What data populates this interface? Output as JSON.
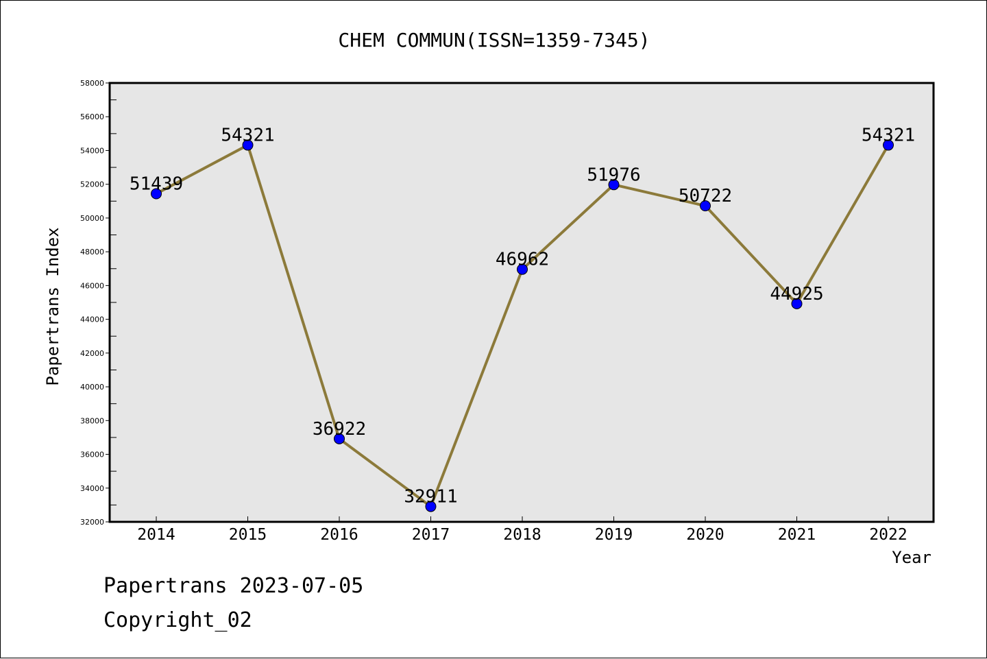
{
  "chart_data": {
    "type": "line",
    "title": "CHEM COMMUN(ISSN=1359-7345)",
    "xlabel": "Year",
    "ylabel": "Papertrans Index",
    "categories": [
      "2014",
      "2015",
      "2016",
      "2017",
      "2018",
      "2019",
      "2020",
      "2021",
      "2022"
    ],
    "series": [
      {
        "values": [
          51439,
          54321,
          36922,
          32911,
          46962,
          51976,
          50722,
          44925,
          54321
        ],
        "data_labels": [
          "51439",
          "54321",
          "36922",
          "32911",
          "46962",
          "51976",
          "50722",
          "44925",
          "54321"
        ]
      }
    ],
    "ylim": [
      32000,
      58000
    ],
    "y_ticks": [
      "32000",
      "34000",
      "36000",
      "38000",
      "40000",
      "42000",
      "44000",
      "46000",
      "48000",
      "50000",
      "52000",
      "54000",
      "56000",
      "58000"
    ],
    "grid": false,
    "legend": "none",
    "colors": {
      "line": "#8c7a3a",
      "marker": "#0000ff",
      "plot_background": "#e6e6e6",
      "axes": "#000000"
    }
  },
  "footer": {
    "line1": "Papertrans 2023-07-05",
    "line2": "Copyright_02"
  }
}
